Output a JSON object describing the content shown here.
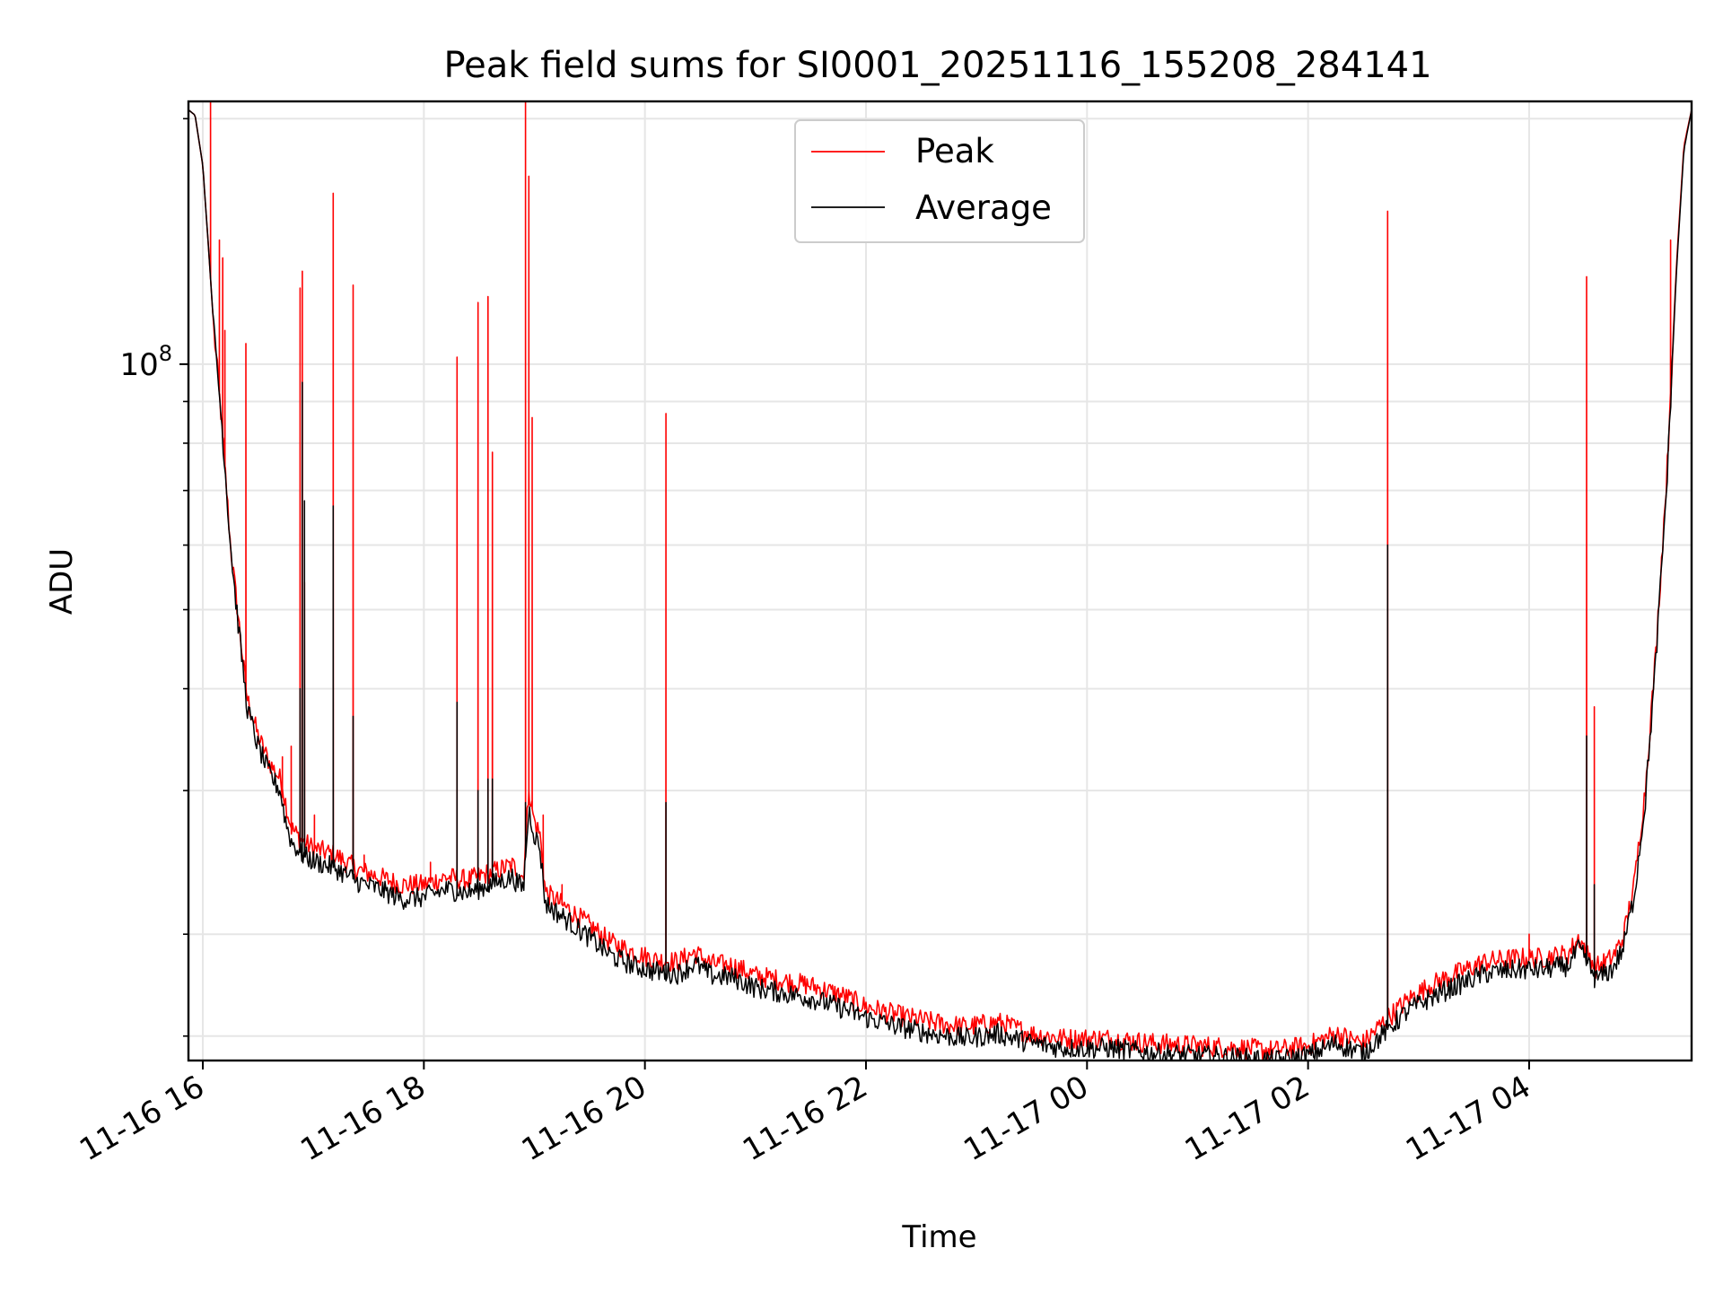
{
  "chart_data": {
    "type": "line",
    "title": "Peak field sums for SI0001_20251116_155208_284141",
    "xlabel": "Time",
    "ylabel": "ADU",
    "yscale": "log",
    "ylim": [
      14000000,
      210000000
    ],
    "xlim_hours": [
      15.87,
      29.47
    ],
    "grid": true,
    "legend_position": "upper-center",
    "colors": {
      "peak": "#ff0000",
      "average": "#000000",
      "grid": "#e6e6e6",
      "axes": "#000000"
    },
    "x_ticks": [
      {
        "hour": 16,
        "label": "11-16 16"
      },
      {
        "hour": 18,
        "label": "11-16 18"
      },
      {
        "hour": 20,
        "label": "11-16 20"
      },
      {
        "hour": 22,
        "label": "11-16 22"
      },
      {
        "hour": 24,
        "label": "11-17 00"
      },
      {
        "hour": 26,
        "label": "11-17 02"
      },
      {
        "hour": 28,
        "label": "11-17 04"
      }
    ],
    "y_major_ticks": [
      {
        "value": 100000000,
        "label_base": "10",
        "label_exp": "8"
      }
    ],
    "y_minor_ticks": [
      15000000,
      20000000,
      30000000,
      40000000,
      50000000,
      60000000,
      70000000,
      80000000,
      90000000,
      200000000
    ],
    "series": [
      {
        "name": "Peak",
        "color": "#ff0000",
        "baseline": [
          [
            15.87,
            205000000
          ],
          [
            15.93,
            202000000
          ],
          [
            16.0,
            175000000
          ],
          [
            16.05,
            140000000
          ],
          [
            16.1,
            110000000
          ],
          [
            16.15,
            92000000
          ],
          [
            16.2,
            75000000
          ],
          [
            16.25,
            60000000
          ],
          [
            16.3,
            52000000
          ],
          [
            16.35,
            45000000
          ],
          [
            16.4,
            39000000
          ],
          [
            16.5,
            35000000
          ],
          [
            16.6,
            32500000
          ],
          [
            16.7,
            31000000
          ],
          [
            16.75,
            29000000
          ],
          [
            16.8,
            27000000
          ],
          [
            16.9,
            26000000
          ],
          [
            17.0,
            25500000
          ],
          [
            17.2,
            25000000
          ],
          [
            17.4,
            24000000
          ],
          [
            17.6,
            23500000
          ],
          [
            17.8,
            23000000
          ],
          [
            18.0,
            23000000
          ],
          [
            18.2,
            23500000
          ],
          [
            18.4,
            23300000
          ],
          [
            18.6,
            23800000
          ],
          [
            18.8,
            24300000
          ],
          [
            18.9,
            23500000
          ],
          [
            18.95,
            30000000
          ],
          [
            19.0,
            27500000
          ],
          [
            19.05,
            26500000
          ],
          [
            19.1,
            22500000
          ],
          [
            19.3,
            21500000
          ],
          [
            19.5,
            20500000
          ],
          [
            19.7,
            19500000
          ],
          [
            19.9,
            19000000
          ],
          [
            20.1,
            18600000
          ],
          [
            20.3,
            18500000
          ],
          [
            20.45,
            19000000
          ],
          [
            20.6,
            18400000
          ],
          [
            20.8,
            18300000
          ],
          [
            21.0,
            17800000
          ],
          [
            21.2,
            17600000
          ],
          [
            21.5,
            17300000
          ],
          [
            21.8,
            16800000
          ],
          [
            22.0,
            16300000
          ],
          [
            22.3,
            15900000
          ],
          [
            22.6,
            15600000
          ],
          [
            22.9,
            15400000
          ],
          [
            23.2,
            15600000
          ],
          [
            23.5,
            15100000
          ],
          [
            23.8,
            14900000
          ],
          [
            24.2,
            14900000
          ],
          [
            24.6,
            14700000
          ],
          [
            25.0,
            14600000
          ],
          [
            25.4,
            14500000
          ],
          [
            25.7,
            14400000
          ],
          [
            26.0,
            14600000
          ],
          [
            26.25,
            15100000
          ],
          [
            26.5,
            14700000
          ],
          [
            26.7,
            15700000
          ],
          [
            26.9,
            16600000
          ],
          [
            27.1,
            17300000
          ],
          [
            27.3,
            17800000
          ],
          [
            27.6,
            18500000
          ],
          [
            27.9,
            18700000
          ],
          [
            28.1,
            18700000
          ],
          [
            28.35,
            18900000
          ],
          [
            28.45,
            19800000
          ],
          [
            28.55,
            18800000
          ],
          [
            28.6,
            18200000
          ],
          [
            28.75,
            18700000
          ],
          [
            28.85,
            19800000
          ],
          [
            28.95,
            23000000
          ],
          [
            29.05,
            30000000
          ],
          [
            29.15,
            45000000
          ],
          [
            29.25,
            75000000
          ],
          [
            29.33,
            130000000
          ],
          [
            29.4,
            185000000
          ],
          [
            29.47,
            205000000
          ]
        ],
        "spikes": [
          [
            16.07,
            210000000
          ],
          [
            16.15,
            142000000
          ],
          [
            16.18,
            135000000
          ],
          [
            16.2,
            110000000
          ],
          [
            16.39,
            106000000
          ],
          [
            16.72,
            33000000
          ],
          [
            16.8,
            34000000
          ],
          [
            16.88,
            124000000
          ],
          [
            16.9,
            130000000
          ],
          [
            16.92,
            54000000
          ],
          [
            17.01,
            28000000
          ],
          [
            17.18,
            162000000
          ],
          [
            17.36,
            125000000
          ],
          [
            17.46,
            25000000
          ],
          [
            18.06,
            24500000
          ],
          [
            18.3,
            102000000
          ],
          [
            18.49,
            119000000
          ],
          [
            18.58,
            121000000
          ],
          [
            18.62,
            78000000
          ],
          [
            18.78,
            24300000
          ],
          [
            18.92,
            210000000
          ],
          [
            18.95,
            170000000
          ],
          [
            18.98,
            86000000
          ],
          [
            19.08,
            28000000
          ],
          [
            19.25,
            23000000
          ],
          [
            20.19,
            87000000
          ],
          [
            26.72,
            154000000
          ],
          [
            28.0,
            20000000
          ],
          [
            28.52,
            128000000
          ],
          [
            28.59,
            38000000
          ],
          [
            29.28,
            142000000
          ]
        ]
      },
      {
        "name": "Average",
        "color": "#000000",
        "baseline": [
          [
            15.87,
            205000000
          ],
          [
            15.93,
            202000000
          ],
          [
            16.0,
            175000000
          ],
          [
            16.05,
            140000000
          ],
          [
            16.1,
            110000000
          ],
          [
            16.15,
            92000000
          ],
          [
            16.2,
            75000000
          ],
          [
            16.25,
            60000000
          ],
          [
            16.3,
            51000000
          ],
          [
            16.35,
            44000000
          ],
          [
            16.4,
            38000000
          ],
          [
            16.5,
            34000000
          ],
          [
            16.6,
            31500000
          ],
          [
            16.7,
            30000000
          ],
          [
            16.75,
            27500000
          ],
          [
            16.8,
            26000000
          ],
          [
            16.9,
            25000000
          ],
          [
            17.0,
            24600000
          ],
          [
            17.2,
            24100000
          ],
          [
            17.4,
            23200000
          ],
          [
            17.6,
            22700000
          ],
          [
            17.8,
            22100000
          ],
          [
            18.0,
            22200000
          ],
          [
            18.2,
            22700000
          ],
          [
            18.4,
            22500000
          ],
          [
            18.6,
            23000000
          ],
          [
            18.8,
            23500000
          ],
          [
            18.9,
            22700000
          ],
          [
            18.95,
            28500000
          ],
          [
            19.0,
            26500000
          ],
          [
            19.05,
            25500000
          ],
          [
            19.1,
            21800000
          ],
          [
            19.3,
            20800000
          ],
          [
            19.5,
            19800000
          ],
          [
            19.7,
            18800000
          ],
          [
            19.9,
            18300000
          ],
          [
            20.1,
            18000000
          ],
          [
            20.3,
            17900000
          ],
          [
            20.45,
            18400000
          ],
          [
            20.6,
            17800000
          ],
          [
            20.8,
            17700000
          ],
          [
            21.0,
            17200000
          ],
          [
            21.2,
            17000000
          ],
          [
            21.5,
            16700000
          ],
          [
            21.8,
            16200000
          ],
          [
            22.0,
            15800000
          ],
          [
            22.3,
            15400000
          ],
          [
            22.6,
            15100000
          ],
          [
            22.9,
            14900000
          ],
          [
            23.2,
            15100000
          ],
          [
            23.5,
            14700000
          ],
          [
            23.8,
            14500000
          ],
          [
            24.2,
            14500000
          ],
          [
            24.6,
            14300000
          ],
          [
            25.0,
            14200000
          ],
          [
            25.4,
            14100000
          ],
          [
            25.7,
            14000000
          ],
          [
            26.0,
            14200000
          ],
          [
            26.25,
            14700000
          ],
          [
            26.5,
            14300000
          ],
          [
            26.7,
            15200000
          ],
          [
            26.9,
            16100000
          ],
          [
            27.1,
            16700000
          ],
          [
            27.3,
            17200000
          ],
          [
            27.6,
            17900000
          ],
          [
            27.9,
            18100000
          ],
          [
            28.1,
            18100000
          ],
          [
            28.35,
            18300000
          ],
          [
            28.45,
            19200000
          ],
          [
            28.55,
            18200000
          ],
          [
            28.6,
            17600000
          ],
          [
            28.75,
            18100000
          ],
          [
            28.85,
            19200000
          ],
          [
            28.95,
            22300000
          ],
          [
            29.05,
            29000000
          ],
          [
            29.15,
            44000000
          ],
          [
            29.25,
            73000000
          ],
          [
            29.33,
            128000000
          ],
          [
            29.4,
            183000000
          ],
          [
            29.47,
            205000000
          ]
        ],
        "spikes": [
          [
            16.88,
            40000000
          ],
          [
            16.9,
            95000000
          ],
          [
            16.92,
            68000000
          ],
          [
            17.18,
            67000000
          ],
          [
            17.36,
            37000000
          ],
          [
            18.3,
            38500000
          ],
          [
            18.49,
            30000000
          ],
          [
            18.58,
            31000000
          ],
          [
            18.62,
            31000000
          ],
          [
            18.92,
            29000000
          ],
          [
            20.19,
            29000000
          ],
          [
            26.72,
            60000000
          ],
          [
            28.52,
            35000000
          ],
          [
            28.59,
            23000000
          ]
        ]
      }
    ]
  },
  "legend": {
    "items": [
      {
        "label": "Peak",
        "color": "#ff0000"
      },
      {
        "label": "Average",
        "color": "#000000"
      }
    ]
  }
}
